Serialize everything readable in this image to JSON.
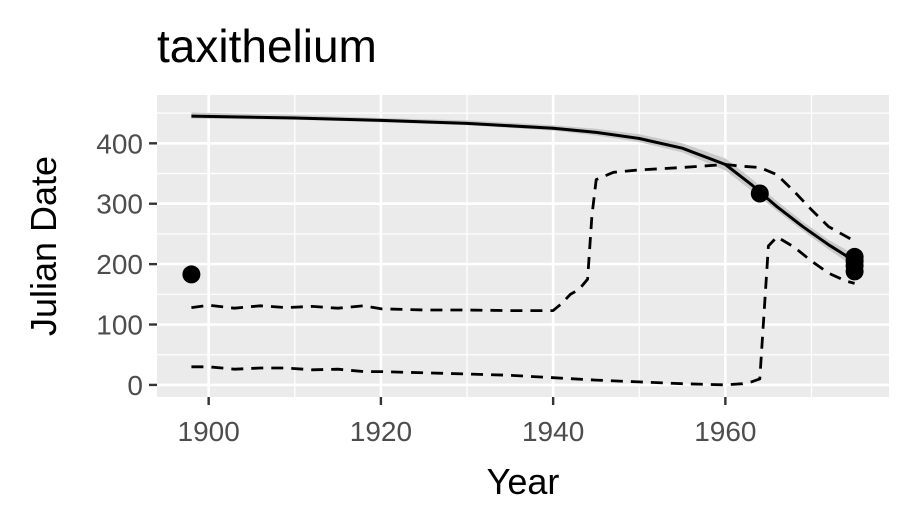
{
  "chart_data": {
    "type": "line",
    "title": "taxithelium",
    "xlabel": "Year",
    "ylabel": "Julian Date",
    "xlim": [
      1894,
      1979
    ],
    "ylim": [
      -20,
      480
    ],
    "x_ticks": [
      1900,
      1920,
      1940,
      1960
    ],
    "y_ticks": [
      0,
      100,
      200,
      300,
      400
    ],
    "x_minor_ticks": [
      1910,
      1930,
      1950,
      1970
    ],
    "y_minor_ticks": [
      50,
      150,
      250,
      350,
      450
    ],
    "grid": true,
    "legend": "none",
    "colors": {
      "panel": "#ebebeb",
      "grid": "#ffffff",
      "line": "#000000",
      "ribbon": "#c9c9c9",
      "tick_text": "#4d4d4d"
    },
    "series": [
      {
        "type": "points",
        "x": [
          1898,
          1964,
          1975,
          1975,
          1975,
          1975
        ],
        "y": [
          183,
          317,
          188,
          197,
          205,
          212
        ]
      },
      {
        "type": "smooth",
        "x": [
          1898,
          1910,
          1920,
          1930,
          1940,
          1945,
          1950,
          1955,
          1960,
          1963,
          1966,
          1969,
          1972,
          1975
        ],
        "y": [
          445,
          442,
          438,
          433,
          425,
          418,
          408,
          392,
          365,
          332,
          295,
          262,
          232,
          205
        ],
        "ribbon_low": [
          441,
          439,
          435,
          430,
          421,
          413,
          402,
          385,
          355,
          322,
          288,
          255,
          224,
          195
        ],
        "ribbon_high": [
          451,
          447,
          442,
          438,
          430,
          424,
          415,
          400,
          375,
          342,
          304,
          270,
          240,
          216
        ]
      },
      {
        "type": "dashed",
        "x": [
          1898,
          1900,
          1903,
          1906,
          1909,
          1912,
          1915,
          1918,
          1920,
          1925,
          1930,
          1935,
          1940,
          1941,
          1942,
          1943,
          1944,
          1944.5,
          1945,
          1947,
          1950,
          1955,
          1960,
          1962,
          1964,
          1966,
          1968,
          1970,
          1972,
          1975
        ],
        "y": [
          128,
          132,
          127,
          131,
          128,
          130,
          127,
          131,
          126,
          124,
          124,
          123,
          123,
          135,
          150,
          158,
          175,
          280,
          340,
          352,
          356,
          360,
          365,
          362,
          360,
          348,
          320,
          290,
          262,
          238
        ]
      },
      {
        "type": "dashed",
        "x": [
          1898,
          1900,
          1903,
          1906,
          1909,
          1912,
          1915,
          1918,
          1920,
          1925,
          1930,
          1935,
          1940,
          1945,
          1950,
          1955,
          1960,
          1962,
          1963,
          1964,
          1964.5,
          1965,
          1966,
          1968,
          1970,
          1972,
          1974,
          1975
        ],
        "y": [
          30,
          30,
          26,
          28,
          28,
          25,
          26,
          22,
          22,
          20,
          18,
          16,
          12,
          8,
          5,
          2,
          0,
          2,
          5,
          10,
          120,
          230,
          245,
          228,
          205,
          185,
          172,
          168
        ]
      }
    ]
  }
}
